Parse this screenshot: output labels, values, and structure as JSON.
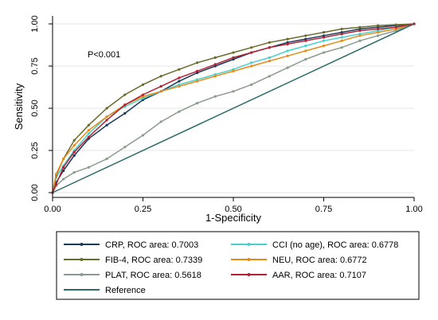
{
  "chart_data": {
    "type": "line",
    "xlabel": "1-Specificity",
    "ylabel": "Sensitivity",
    "xlim": [
      0,
      1
    ],
    "ylim": [
      0,
      1
    ],
    "xticks": [
      "0.00",
      "0.25",
      "0.50",
      "0.75",
      "1.00"
    ],
    "yticks": [
      "0.00",
      "0.25",
      "0.50",
      "0.75",
      "1.00"
    ],
    "annotation": "P<0.001",
    "grid": true,
    "legend_position": "bottom",
    "series": [
      {
        "name": "CRP, ROC area: 0.7003",
        "color": "#1a3a5c",
        "x": [
          0,
          0.01,
          0.03,
          0.06,
          0.1,
          0.15,
          0.2,
          0.25,
          0.3,
          0.35,
          0.4,
          0.45,
          0.5,
          0.55,
          0.6,
          0.65,
          0.7,
          0.75,
          0.8,
          0.85,
          0.9,
          0.95,
          1.0
        ],
        "y": [
          0,
          0.06,
          0.13,
          0.22,
          0.32,
          0.4,
          0.47,
          0.55,
          0.6,
          0.66,
          0.71,
          0.75,
          0.79,
          0.83,
          0.86,
          0.89,
          0.91,
          0.93,
          0.95,
          0.97,
          0.98,
          0.99,
          1.0
        ]
      },
      {
        "name": "CCI (no age), ROC area: 0.6778",
        "color": "#48d1cc",
        "x": [
          0,
          0.01,
          0.03,
          0.06,
          0.1,
          0.15,
          0.2,
          0.25,
          0.3,
          0.35,
          0.4,
          0.45,
          0.5,
          0.55,
          0.6,
          0.65,
          0.7,
          0.75,
          0.8,
          0.85,
          0.9,
          0.95,
          1.0
        ],
        "y": [
          0,
          0.09,
          0.16,
          0.25,
          0.35,
          0.45,
          0.51,
          0.56,
          0.6,
          0.64,
          0.67,
          0.7,
          0.73,
          0.77,
          0.8,
          0.84,
          0.87,
          0.9,
          0.92,
          0.94,
          0.96,
          0.98,
          1.0
        ]
      },
      {
        "name": "FIB-4, ROC area: 0.7339",
        "color": "#6b6b2a",
        "x": [
          0,
          0.01,
          0.03,
          0.06,
          0.1,
          0.15,
          0.2,
          0.25,
          0.3,
          0.35,
          0.4,
          0.45,
          0.5,
          0.55,
          0.6,
          0.65,
          0.7,
          0.75,
          0.8,
          0.85,
          0.9,
          0.95,
          1.0
        ],
        "y": [
          0,
          0.1,
          0.2,
          0.31,
          0.4,
          0.5,
          0.58,
          0.64,
          0.69,
          0.73,
          0.77,
          0.8,
          0.83,
          0.86,
          0.89,
          0.91,
          0.93,
          0.95,
          0.97,
          0.98,
          0.99,
          0.995,
          1.0
        ]
      },
      {
        "name": "NEU, ROC area: 0.6772",
        "color": "#e88a1a",
        "x": [
          0,
          0.01,
          0.03,
          0.06,
          0.1,
          0.15,
          0.2,
          0.25,
          0.3,
          0.35,
          0.4,
          0.45,
          0.5,
          0.55,
          0.6,
          0.65,
          0.7,
          0.75,
          0.8,
          0.85,
          0.9,
          0.95,
          1.0
        ],
        "y": [
          0,
          0.11,
          0.2,
          0.28,
          0.37,
          0.45,
          0.52,
          0.57,
          0.6,
          0.63,
          0.66,
          0.69,
          0.72,
          0.75,
          0.78,
          0.81,
          0.84,
          0.87,
          0.9,
          0.93,
          0.95,
          0.97,
          1.0
        ]
      },
      {
        "name": "PLAT, ROC area: 0.5618",
        "color": "#8c9c8c",
        "x": [
          0,
          0.01,
          0.03,
          0.06,
          0.1,
          0.15,
          0.2,
          0.25,
          0.3,
          0.35,
          0.4,
          0.45,
          0.5,
          0.55,
          0.6,
          0.65,
          0.7,
          0.75,
          0.8,
          0.85,
          0.9,
          0.95,
          1.0
        ],
        "y": [
          0,
          0.04,
          0.08,
          0.12,
          0.15,
          0.2,
          0.27,
          0.34,
          0.42,
          0.48,
          0.53,
          0.57,
          0.6,
          0.64,
          0.69,
          0.74,
          0.79,
          0.83,
          0.86,
          0.9,
          0.93,
          0.96,
          1.0
        ]
      },
      {
        "name": "AAR, ROC area: 0.7107",
        "color": "#b22234",
        "x": [
          0,
          0.01,
          0.03,
          0.06,
          0.1,
          0.15,
          0.2,
          0.25,
          0.3,
          0.35,
          0.4,
          0.45,
          0.5,
          0.55,
          0.6,
          0.65,
          0.7,
          0.75,
          0.8,
          0.85,
          0.9,
          0.95,
          1.0
        ],
        "y": [
          0,
          0.05,
          0.15,
          0.24,
          0.33,
          0.43,
          0.52,
          0.58,
          0.63,
          0.68,
          0.72,
          0.76,
          0.8,
          0.83,
          0.86,
          0.88,
          0.9,
          0.92,
          0.94,
          0.96,
          0.97,
          0.98,
          1.0
        ]
      },
      {
        "name": "Reference",
        "color": "#2e6b6b",
        "x": [
          0,
          1
        ],
        "y": [
          0,
          1
        ],
        "no_markers": true
      }
    ]
  }
}
